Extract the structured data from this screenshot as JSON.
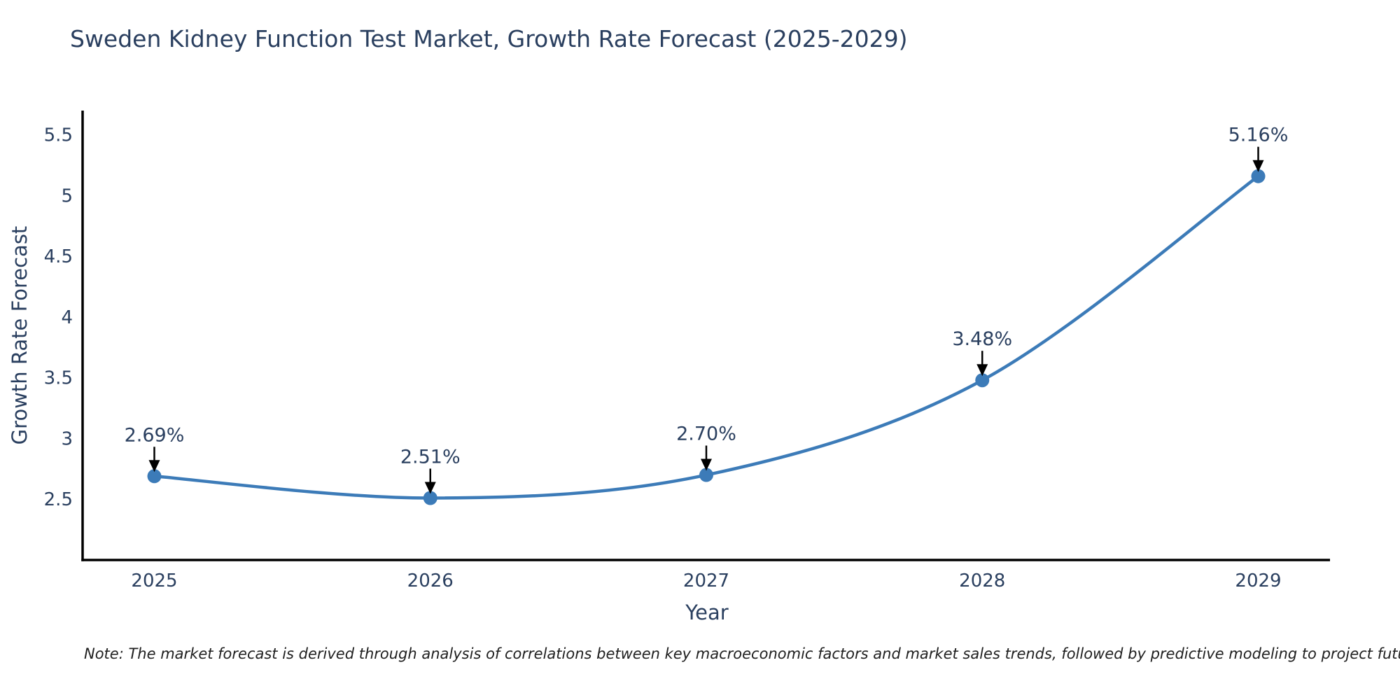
{
  "page": {
    "background": "#ffffff"
  },
  "chart_data": {
    "type": "line",
    "title": "Sweden Kidney Function Test Market, Growth Rate Forecast (2025-2029)",
    "xlabel": "Year",
    "ylabel": "Growth Rate Forecast",
    "x": [
      2025,
      2026,
      2027,
      2028,
      2029
    ],
    "series": [
      {
        "name": "Growth Rate Forecast",
        "values": [
          2.69,
          2.51,
          2.7,
          3.48,
          5.16
        ]
      }
    ],
    "point_labels": [
      "2.69%",
      "2.51%",
      "2.70%",
      "3.48%",
      "5.16%"
    ],
    "xtick_labels": [
      "2025",
      "2026",
      "2027",
      "2028",
      "2029"
    ],
    "ytick_values": [
      2.5,
      3,
      3.5,
      4,
      4.5,
      5,
      5.5
    ],
    "ytick_labels": [
      "2.5",
      "3",
      "3.5",
      "4",
      "4.5",
      "5",
      "5.5"
    ],
    "xlim": [
      2024.74,
      2029.26
    ],
    "ylim": [
      2.0,
      5.7
    ],
    "grid": false,
    "legend_position": "none",
    "curve": "spline",
    "line_color": "#3c7bb8",
    "marker_color": "#3c7bb8",
    "axis_color": "#000000",
    "annotation_color": "#000000",
    "tick_color": "#2a3f5f",
    "title_color": "#2a3f5f"
  },
  "note": {
    "text": "Note: The market forecast is derived through analysis of correlations between key macroeconomic factors and market sales trends, followed by predictive modeling to project future sales"
  }
}
